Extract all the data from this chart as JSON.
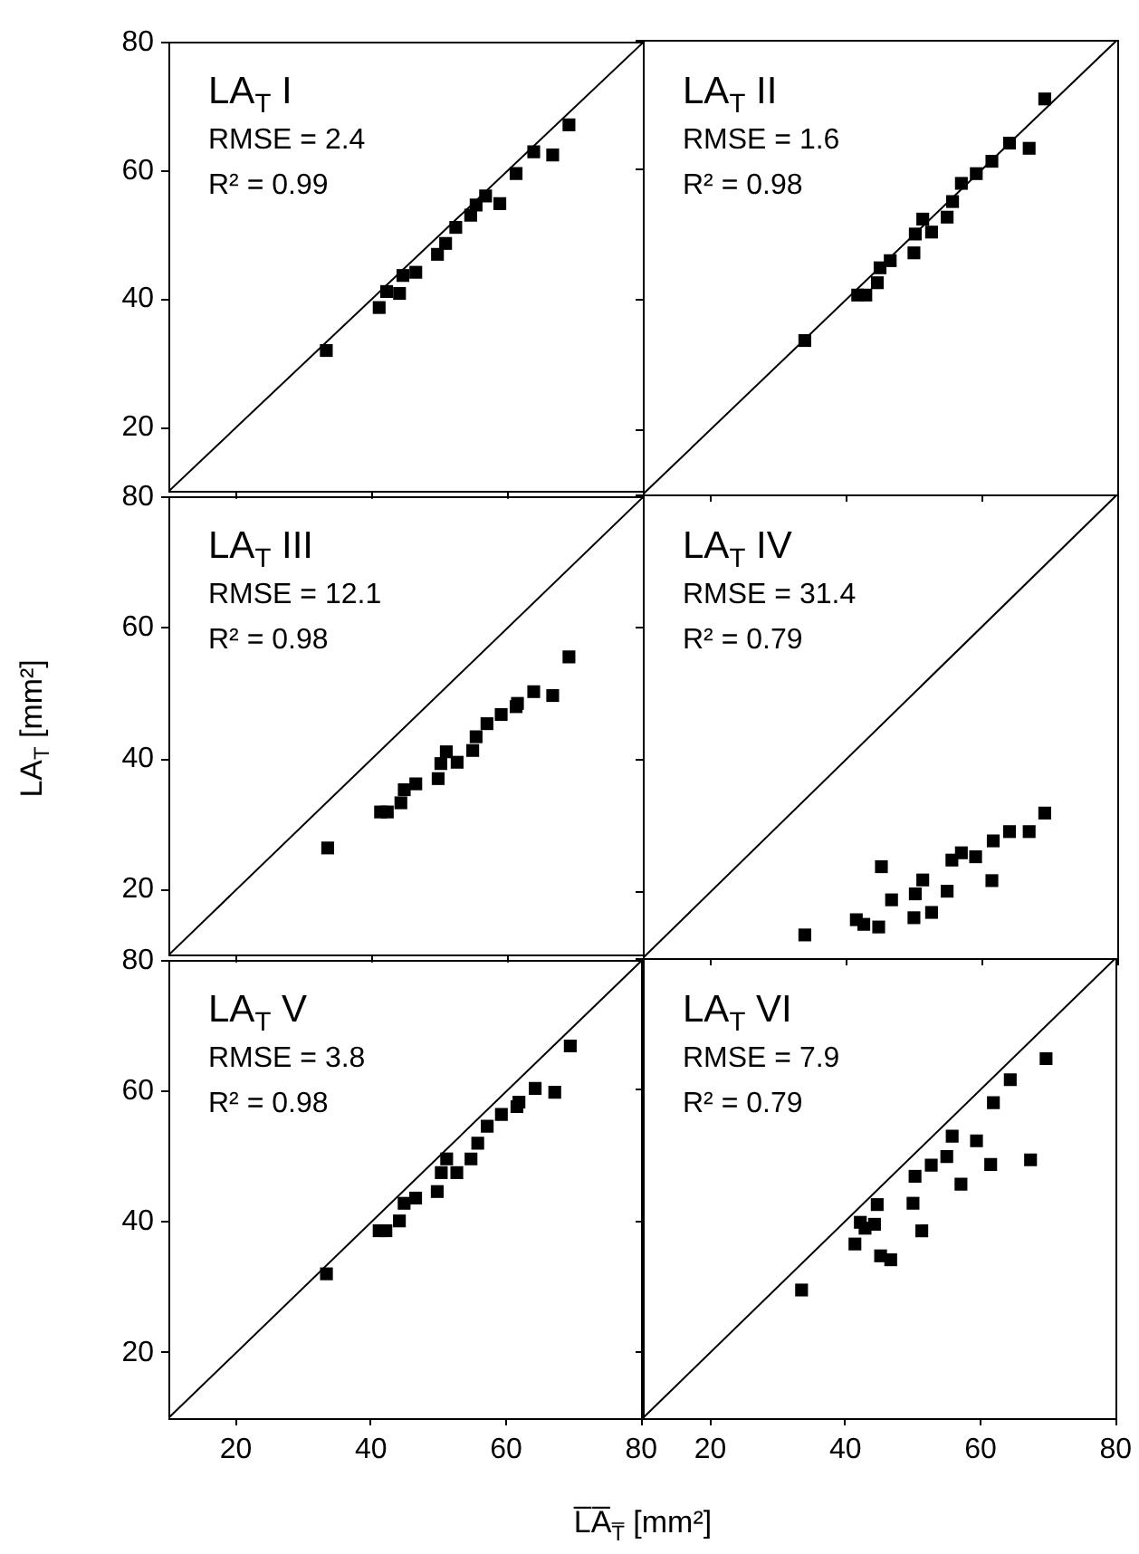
{
  "chart_data": [
    {
      "type": "scatter",
      "title": "LA$_{T}$ I",
      "annotations": [
        "RMSE = 2.4",
        "R² = 0.99"
      ],
      "xlim": [
        10,
        80
      ],
      "ylim": [
        10,
        80
      ],
      "xticks": [
        20,
        40,
        60,
        80
      ],
      "yticks": [
        20,
        40,
        60,
        80
      ],
      "tick_labels": "y",
      "series": [
        {
          "type": "line",
          "marker": "none",
          "color": "#000000",
          "x": [
            10,
            80
          ],
          "values": [
            10,
            80
          ]
        },
        {
          "marker": "square",
          "color": "#000000",
          "x": [
            33.3,
            41.1,
            42.2,
            44.1,
            44.6,
            46.5,
            49.7,
            50.9,
            52.4,
            54.6,
            55.4,
            56.8,
            58.9,
            61.3,
            63.9,
            66.7,
            69.1
          ],
          "values": [
            32.0,
            38.7,
            41.2,
            40.9,
            43.7,
            44.2,
            47.0,
            48.7,
            51.2,
            53.1,
            54.7,
            56.1,
            54.9,
            59.6,
            63.0,
            62.5,
            67.2
          ]
        }
      ]
    },
    {
      "type": "scatter",
      "title": "LA$_{T}$ II",
      "annotations": [
        "RMSE = 1.6",
        "R² = 0.98"
      ],
      "xlim": [
        10,
        80
      ],
      "ylim": [
        10,
        80
      ],
      "xticks": [
        20,
        40,
        60,
        80
      ],
      "yticks": [
        20,
        40,
        60,
        80
      ],
      "tick_labels": false,
      "series": [
        {
          "type": "line",
          "marker": "none",
          "color": "#000000",
          "x": [
            10,
            80
          ],
          "values": [
            10,
            80
          ]
        },
        {
          "marker": "square",
          "color": "#000000",
          "x": [
            33.9,
            41.7,
            42.9,
            44.6,
            45.0,
            46.5,
            50.0,
            50.2,
            51.3,
            52.6,
            54.9,
            55.7,
            57.0,
            59.2,
            61.5,
            64.1,
            67.0,
            69.3
          ],
          "values": [
            33.7,
            40.7,
            40.7,
            42.6,
            44.9,
            46.0,
            47.2,
            50.1,
            52.4,
            50.4,
            52.7,
            55.1,
            57.9,
            59.4,
            61.3,
            64.1,
            63.3,
            70.9
          ]
        }
      ]
    },
    {
      "type": "scatter",
      "title": "LA$_{T}$ III",
      "annotations": [
        "RMSE = 12.1",
        "R² = 0.98"
      ],
      "ylabel": "LA$_{T}$ [mm²]",
      "xlim": [
        10,
        80
      ],
      "ylim": [
        10,
        80
      ],
      "xticks": [
        20,
        40,
        60,
        80
      ],
      "yticks": [
        20,
        40,
        60,
        80
      ],
      "tick_labels": "y",
      "series": [
        {
          "type": "line",
          "marker": "none",
          "color": "#000000",
          "x": [
            10,
            80
          ],
          "values": [
            10,
            80
          ]
        },
        {
          "marker": "square",
          "color": "#000000",
          "x": [
            33.5,
            41.3,
            42.3,
            44.3,
            44.8,
            46.5,
            49.8,
            50.2,
            51.0,
            52.6,
            54.9,
            55.4,
            57.0,
            59.1,
            61.3,
            61.5,
            63.9,
            66.7,
            69.1
          ],
          "values": [
            26.4,
            31.9,
            31.9,
            33.3,
            35.3,
            36.2,
            37.0,
            39.3,
            41.1,
            39.5,
            41.3,
            43.4,
            45.4,
            46.8,
            48.0,
            48.5,
            50.3,
            49.7,
            55.6
          ]
        }
      ]
    },
    {
      "type": "scatter",
      "title": "LA$_{T}$ IV",
      "annotations": [
        "RMSE = 31.4",
        "R² = 0.79"
      ],
      "xlim": [
        10,
        80
      ],
      "ylim": [
        10,
        80
      ],
      "xticks": [
        20,
        40,
        60,
        80
      ],
      "yticks": [
        20,
        40,
        60,
        80
      ],
      "tick_labels": false,
      "series": [
        {
          "type": "line",
          "marker": "none",
          "color": "#000000",
          "x": [
            10,
            80
          ],
          "values": [
            10,
            80
          ]
        },
        {
          "marker": "square",
          "color": "#000000",
          "x": [
            33.9,
            41.5,
            42.6,
            44.8,
            45.2,
            46.7,
            50.0,
            50.2,
            51.3,
            52.6,
            54.9,
            55.6,
            57.0,
            59.1,
            61.5,
            61.7,
            64.1,
            67.0,
            69.3
          ],
          "values": [
            13.5,
            15.8,
            15.1,
            14.7,
            23.8,
            18.8,
            16.1,
            19.7,
            21.8,
            16.9,
            20.1,
            24.8,
            25.9,
            25.3,
            21.7,
            27.7,
            29.1,
            29.1,
            31.9
          ]
        }
      ]
    },
    {
      "type": "scatter",
      "title": "LA$_{T}$ V",
      "annotations": [
        "RMSE = 3.8",
        "R² = 0.98"
      ],
      "xlabel": "L̅A̅$_{T̅}$ [mm²]",
      "xlim": [
        10,
        80
      ],
      "ylim": [
        10,
        80
      ],
      "xticks": [
        20,
        40,
        60,
        80
      ],
      "yticks": [
        20,
        40,
        60,
        80
      ],
      "series": [
        {
          "type": "line",
          "marker": "none",
          "color": "#000000",
          "x": [
            10,
            80
          ],
          "values": [
            10,
            80
          ]
        },
        {
          "marker": "square",
          "color": "#000000",
          "x": [
            33.4,
            41.2,
            42.2,
            44.2,
            44.9,
            46.6,
            49.8,
            50.4,
            51.2,
            52.7,
            54.8,
            55.8,
            57.2,
            59.3,
            61.6,
            61.9,
            64.3,
            67.2,
            69.5
          ],
          "values": [
            32.1,
            38.7,
            38.7,
            40.2,
            42.9,
            43.7,
            44.7,
            47.6,
            49.7,
            47.6,
            49.7,
            52.1,
            54.7,
            56.5,
            57.7,
            58.4,
            60.5,
            59.9,
            67.0
          ]
        }
      ]
    },
    {
      "type": "scatter",
      "title": "LA$_{T}$ VI",
      "annotations": [
        "RMSE = 7.9",
        "R² = 0.79"
      ],
      "xlim": [
        10,
        80
      ],
      "ylim": [
        10,
        80
      ],
      "xticks": [
        20,
        40,
        60,
        80
      ],
      "yticks": [
        20,
        40,
        60,
        80
      ],
      "tick_labels": "x",
      "series": [
        {
          "type": "line",
          "marker": "none",
          "color": "#000000",
          "x": [
            10,
            80
          ],
          "values": [
            10,
            80
          ]
        },
        {
          "marker": "square",
          "color": "#000000",
          "x": [
            33.5,
            41.4,
            42.2,
            42.9,
            44.3,
            44.7,
            45.2,
            46.7,
            50.0,
            50.3,
            51.3,
            52.7,
            55.0,
            55.8,
            57.1,
            59.4,
            61.5,
            61.9,
            64.4,
            67.4,
            69.7
          ],
          "values": [
            29.5,
            36.5,
            39.8,
            38.9,
            39.5,
            42.5,
            34.7,
            34.1,
            42.7,
            46.8,
            38.5,
            48.5,
            49.8,
            52.9,
            45.6,
            52.2,
            48.6,
            58.0,
            61.5,
            49.3,
            64.7
          ]
        }
      ]
    }
  ]
}
